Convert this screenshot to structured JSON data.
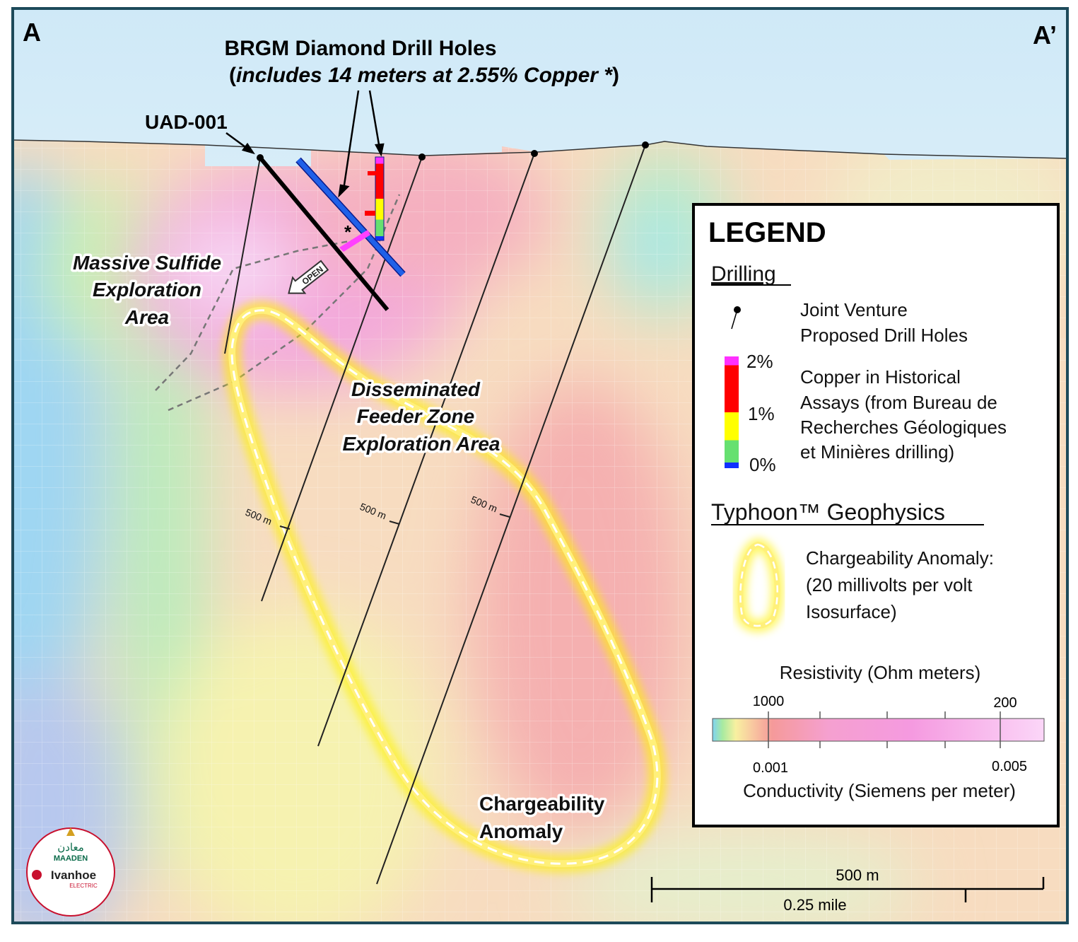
{
  "section": {
    "start_label": "A",
    "end_label": "A’"
  },
  "callouts": {
    "brgm_title": "BRGM Diamond Drill Holes",
    "brgm_open": "(",
    "brgm_detail": "includes 14 meters at 2.55% Copper *",
    "brgm_close": ")",
    "uad": "UAD-001",
    "asterisk": "*",
    "open": "OPEN"
  },
  "zones": {
    "massive_sulfide": [
      "Massive Sulfide",
      "Exploration",
      "Area"
    ],
    "feeder": [
      "Disseminated",
      "Feeder Zone",
      "Exploration Area"
    ],
    "chargeability": [
      "Chargeability",
      "Anomaly"
    ]
  },
  "depth_markers": [
    "500 m",
    "500 m",
    "500 m"
  ],
  "legend": {
    "title": "LEGEND",
    "drilling": "Drilling",
    "proposed": [
      "Joint Venture",
      "Proposed Drill Holes"
    ],
    "copper_scale": [
      "2%",
      "1%",
      "0%"
    ],
    "copper": [
      "Copper in Historical",
      "Assays (from Bureau de",
      "Recherches Géologiques",
      "et Minières drilling)"
    ],
    "geophysics": "Typhoon™ Geophysics",
    "anomaly": [
      "Chargeability Anomaly:",
      "(20 millivolts per volt",
      "Isosurface)"
    ],
    "resistivity_title": "Resistivity (Ohm meters)",
    "resistivity_labels": [
      "1000",
      "200"
    ],
    "conductivity_labels": [
      "0.001",
      "0.005"
    ],
    "conductivity_title": "Conductivity (Siemens per meter)"
  },
  "scale_bar": {
    "metric": "500 m",
    "imperial": "0.25 mile"
  },
  "logo": {
    "arabic": "معادن",
    "maaden": "MAADEN",
    "ivanhoe": "Ivanhoe",
    "electric": "ELECTRIC"
  }
}
